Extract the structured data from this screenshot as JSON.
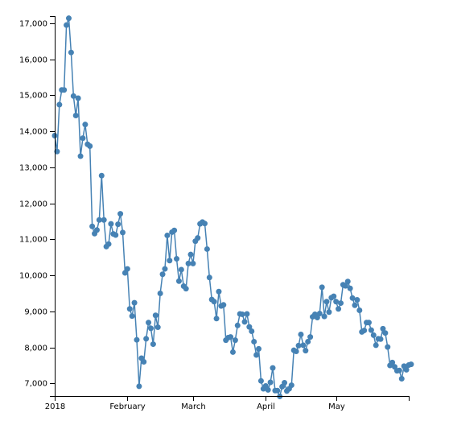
{
  "chart_data": {
    "type": "line",
    "title": "",
    "xlabel": "",
    "ylabel": "",
    "x_ticks": [
      {
        "date": "2018-01-01",
        "label": "2018"
      },
      {
        "date": "2018-02-01",
        "label": "February"
      },
      {
        "date": "2018-03-01",
        "label": "March"
      },
      {
        "date": "2018-04-01",
        "label": "April"
      },
      {
        "date": "2018-05-01",
        "label": "May"
      }
    ],
    "y_ticks": [
      7000,
      8000,
      9000,
      10000,
      11000,
      12000,
      13000,
      14000,
      15000,
      16000,
      17000
    ],
    "xlim": [
      "2018-01-01",
      "2018-06-01"
    ],
    "ylim": [
      6650,
      17200
    ],
    "grid": false,
    "markers": true,
    "series": [
      {
        "color": "#4682b4",
        "points": [
          [
            "2018-01-01",
            13880
          ],
          [
            "2018-01-02",
            13440
          ],
          [
            "2018-01-03",
            14740
          ],
          [
            "2018-01-04",
            15150
          ],
          [
            "2018-01-05",
            15150
          ],
          [
            "2018-01-06",
            16950
          ],
          [
            "2018-01-07",
            17140
          ],
          [
            "2018-01-08",
            16190
          ],
          [
            "2018-01-09",
            14980
          ],
          [
            "2018-01-10",
            14440
          ],
          [
            "2018-01-11",
            14920
          ],
          [
            "2018-01-12",
            13310
          ],
          [
            "2018-01-13",
            13810
          ],
          [
            "2018-01-14",
            14190
          ],
          [
            "2018-01-15",
            13640
          ],
          [
            "2018-01-16",
            13590
          ],
          [
            "2018-01-17",
            11360
          ],
          [
            "2018-01-18",
            11160
          ],
          [
            "2018-01-19",
            11260
          ],
          [
            "2018-01-20",
            11540
          ],
          [
            "2018-01-21",
            12770
          ],
          [
            "2018-01-22",
            11540
          ],
          [
            "2018-01-23",
            10800
          ],
          [
            "2018-01-24",
            10870
          ],
          [
            "2018-01-25",
            11430
          ],
          [
            "2018-01-26",
            11150
          ],
          [
            "2018-01-27",
            11120
          ],
          [
            "2018-01-28",
            11420
          ],
          [
            "2018-01-29",
            11710
          ],
          [
            "2018-01-30",
            11190
          ],
          [
            "2018-01-31",
            10070
          ],
          [
            "2018-02-01",
            10180
          ],
          [
            "2018-02-02",
            9070
          ],
          [
            "2018-02-03",
            8870
          ],
          [
            "2018-02-04",
            9240
          ],
          [
            "2018-02-05",
            8210
          ],
          [
            "2018-02-06",
            6920
          ],
          [
            "2018-02-07",
            7700
          ],
          [
            "2018-02-08",
            7600
          ],
          [
            "2018-02-09",
            8240
          ],
          [
            "2018-02-10",
            8690
          ],
          [
            "2018-02-11",
            8530
          ],
          [
            "2018-02-12",
            8090
          ],
          [
            "2018-02-13",
            8890
          ],
          [
            "2018-02-14",
            8560
          ],
          [
            "2018-02-15",
            9500
          ],
          [
            "2018-02-16",
            10030
          ],
          [
            "2018-02-17",
            10180
          ],
          [
            "2018-02-18",
            11110
          ],
          [
            "2018-02-19",
            10410
          ],
          [
            "2018-02-20",
            11200
          ],
          [
            "2018-02-21",
            11250
          ],
          [
            "2018-02-22",
            10460
          ],
          [
            "2018-02-23",
            9840
          ],
          [
            "2018-02-24",
            10160
          ],
          [
            "2018-02-25",
            9700
          ],
          [
            "2018-02-26",
            9630
          ],
          [
            "2018-02-27",
            10330
          ],
          [
            "2018-02-28",
            10580
          ],
          [
            "2018-03-01",
            10330
          ],
          [
            "2018-03-02",
            10950
          ],
          [
            "2018-03-03",
            11040
          ],
          [
            "2018-03-04",
            11430
          ],
          [
            "2018-03-05",
            11480
          ],
          [
            "2018-03-06",
            11440
          ],
          [
            "2018-03-07",
            10730
          ],
          [
            "2018-03-08",
            9940
          ],
          [
            "2018-03-09",
            9330
          ],
          [
            "2018-03-10",
            9270
          ],
          [
            "2018-03-11",
            8800
          ],
          [
            "2018-03-12",
            9550
          ],
          [
            "2018-03-13",
            9150
          ],
          [
            "2018-03-14",
            9180
          ],
          [
            "2018-03-15",
            8200
          ],
          [
            "2018-03-16",
            8270
          ],
          [
            "2018-03-17",
            8290
          ],
          [
            "2018-03-18",
            7870
          ],
          [
            "2018-03-19",
            8200
          ],
          [
            "2018-03-20",
            8610
          ],
          [
            "2018-03-21",
            8930
          ],
          [
            "2018-03-22",
            8920
          ],
          [
            "2018-03-23",
            8710
          ],
          [
            "2018-03-24",
            8930
          ],
          [
            "2018-03-25",
            8570
          ],
          [
            "2018-03-26",
            8450
          ],
          [
            "2018-03-27",
            8160
          ],
          [
            "2018-03-28",
            7790
          ],
          [
            "2018-03-29",
            7960
          ],
          [
            "2018-03-30",
            7070
          ],
          [
            "2018-03-31",
            6850
          ],
          [
            "2018-04-01",
            6930
          ],
          [
            "2018-04-02",
            6820
          ],
          [
            "2018-04-03",
            7030
          ],
          [
            "2018-04-04",
            7430
          ],
          [
            "2018-04-05",
            6800
          ],
          [
            "2018-04-06",
            6800
          ],
          [
            "2018-04-07",
            6640
          ],
          [
            "2018-04-08",
            6910
          ],
          [
            "2018-04-09",
            7020
          ],
          [
            "2018-04-10",
            6790
          ],
          [
            "2018-04-11",
            6850
          ],
          [
            "2018-04-12",
            6950
          ],
          [
            "2018-04-13",
            7920
          ],
          [
            "2018-04-14",
            7890
          ],
          [
            "2018-04-15",
            8050
          ],
          [
            "2018-04-16",
            8360
          ],
          [
            "2018-04-17",
            8060
          ],
          [
            "2018-04-18",
            7910
          ],
          [
            "2018-04-19",
            8160
          ],
          [
            "2018-04-20",
            8290
          ],
          [
            "2018-04-21",
            8850
          ],
          [
            "2018-04-22",
            8920
          ],
          [
            "2018-04-23",
            8830
          ],
          [
            "2018-04-24",
            8940
          ],
          [
            "2018-04-25",
            9670
          ],
          [
            "2018-04-26",
            8860
          ],
          [
            "2018-04-27",
            9270
          ],
          [
            "2018-04-28",
            8980
          ],
          [
            "2018-04-29",
            9380
          ],
          [
            "2018-04-30",
            9420
          ],
          [
            "2018-05-01",
            9270
          ],
          [
            "2018-05-02",
            9070
          ],
          [
            "2018-05-03",
            9230
          ],
          [
            "2018-05-04",
            9740
          ],
          [
            "2018-05-05",
            9710
          ],
          [
            "2018-05-06",
            9830
          ],
          [
            "2018-05-07",
            9640
          ],
          [
            "2018-05-08",
            9370
          ],
          [
            "2018-05-09",
            9170
          ],
          [
            "2018-05-10",
            9320
          ],
          [
            "2018-05-11",
            9030
          ],
          [
            "2018-05-12",
            8430
          ],
          [
            "2018-05-13",
            8470
          ],
          [
            "2018-05-14",
            8690
          ],
          [
            "2018-05-15",
            8690
          ],
          [
            "2018-05-16",
            8480
          ],
          [
            "2018-05-17",
            8340
          ],
          [
            "2018-05-18",
            8060
          ],
          [
            "2018-05-19",
            8240
          ],
          [
            "2018-05-20",
            8230
          ],
          [
            "2018-05-21",
            8520
          ],
          [
            "2018-05-22",
            8400
          ],
          [
            "2018-05-23",
            8010
          ],
          [
            "2018-05-24",
            7500
          ],
          [
            "2018-05-25",
            7580
          ],
          [
            "2018-05-26",
            7460
          ],
          [
            "2018-05-27",
            7350
          ],
          [
            "2018-05-28",
            7360
          ],
          [
            "2018-05-29",
            7130
          ],
          [
            "2018-05-30",
            7480
          ],
          [
            "2018-05-31",
            7380
          ],
          [
            "2018-06-01",
            7510
          ],
          [
            "2018-06-02",
            7530
          ]
        ]
      }
    ]
  }
}
